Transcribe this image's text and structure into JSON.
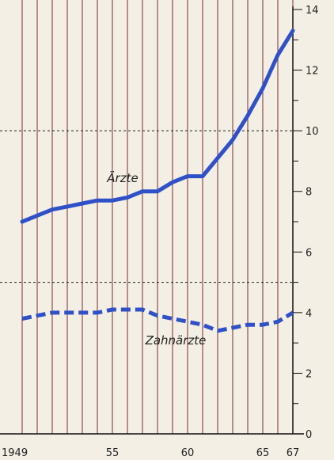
{
  "chart_data": {
    "type": "line",
    "x_tick_labels": [
      {
        "x": 1949,
        "label": "1949"
      },
      {
        "x": 1955,
        "label": "55"
      },
      {
        "x": 1960,
        "label": "60"
      },
      {
        "x": 1965,
        "label": "65"
      },
      {
        "x": 1967,
        "label": "67"
      }
    ],
    "y_tick_labels": [
      {
        "y": 0,
        "label": "0"
      },
      {
        "y": 2,
        "label": "2"
      },
      {
        "y": 4,
        "label": "4"
      },
      {
        "y": 6,
        "label": "6"
      },
      {
        "y": 8,
        "label": "8"
      },
      {
        "y": 10,
        "label": "10"
      },
      {
        "y": 12,
        "label": "12"
      },
      {
        "y": 14,
        "label": "14"
      }
    ],
    "xlim": [
      1949,
      1967
    ],
    "ylim": [
      0,
      14
    ],
    "y_axis_side": "right",
    "vertical_gridlines_yearly": true,
    "dotted_gridlines_y": [
      5,
      10
    ],
    "series": [
      {
        "name": "Ärzte",
        "style": "solid",
        "color": "#3050c8",
        "x": [
          1949,
          1950,
          1951,
          1952,
          1953,
          1954,
          1955,
          1956,
          1957,
          1958,
          1959,
          1960,
          1961,
          1962,
          1963,
          1964,
          1965,
          1966,
          1967
        ],
        "y": [
          7.0,
          7.2,
          7.4,
          7.5,
          7.6,
          7.7,
          7.7,
          7.8,
          8.0,
          8.0,
          8.3,
          8.5,
          8.5,
          9.1,
          9.7,
          10.5,
          11.4,
          12.5,
          13.3
        ]
      },
      {
        "name": "Zahnärzte",
        "style": "dashed",
        "color": "#3050c8",
        "x": [
          1949,
          1950,
          1951,
          1952,
          1953,
          1954,
          1955,
          1956,
          1957,
          1958,
          1959,
          1960,
          1961,
          1962,
          1963,
          1964,
          1965,
          1966,
          1967
        ],
        "y": [
          3.8,
          3.9,
          4.0,
          4.0,
          4.0,
          4.0,
          4.1,
          4.1,
          4.1,
          3.9,
          3.8,
          3.7,
          3.6,
          3.4,
          3.5,
          3.6,
          3.6,
          3.7,
          4.0
        ]
      }
    ]
  }
}
